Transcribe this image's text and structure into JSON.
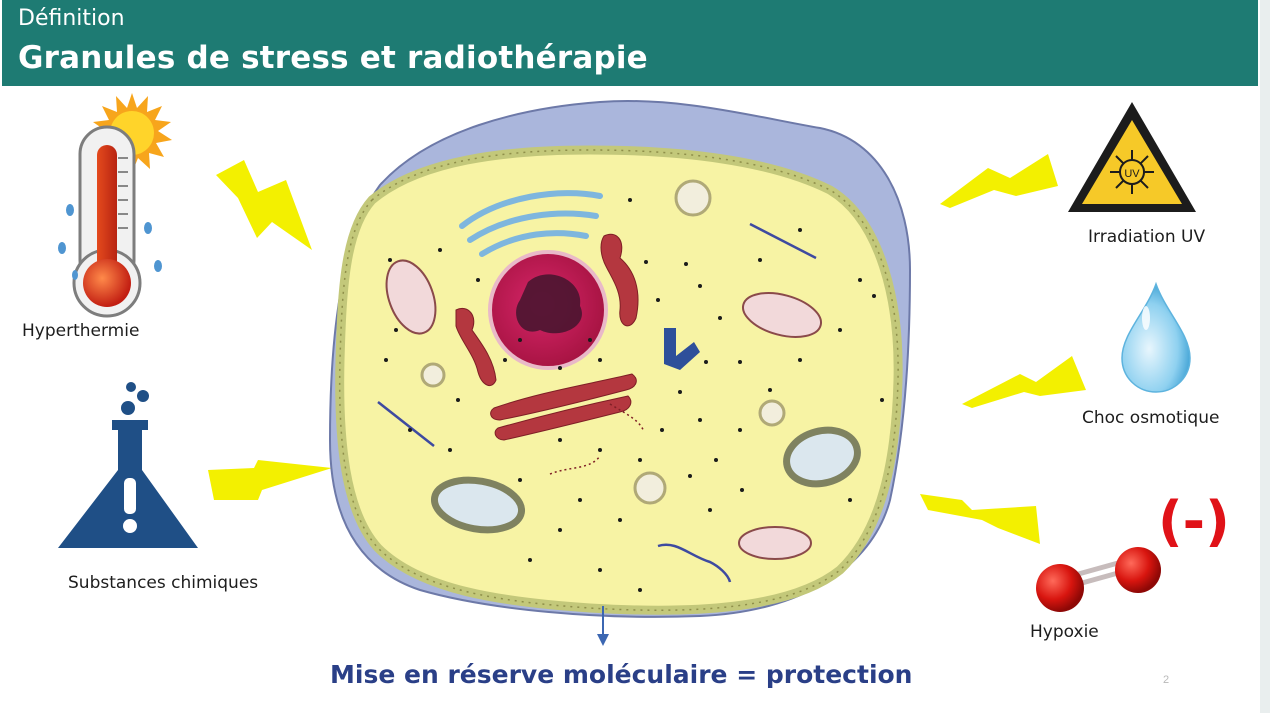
{
  "header": {
    "kicker": "Définition",
    "title": "Granules de stress et radiothérapie"
  },
  "stressors": {
    "hyperthermia": "Hyperthermie",
    "chemicals": "Substances chimiques",
    "uv": "Irradiation UV",
    "osmotic": "Choc osmotique",
    "hypoxia": "Hypoxie"
  },
  "hypoxia_sign": "(-)",
  "uv_icon_text": "UV",
  "caption": "Mise en réserve moléculaire = protection",
  "page_number": "2",
  "colors": {
    "header": "#1e7b73",
    "caption": "#2a3f87",
    "lightning": "#f3f000",
    "minus": "#e01218",
    "cytoplasm": "#f7f3a4",
    "membrane": "#c3c87a",
    "nucleus": "#c41f55"
  },
  "icons": {
    "hyperthermia": "thermometer-sun-icon",
    "chemicals": "flask-warning-icon",
    "uv": "uv-warning-sign-icon",
    "osmotic": "water-drop-icon",
    "hypoxia": "oxygen-molecule-icon"
  }
}
